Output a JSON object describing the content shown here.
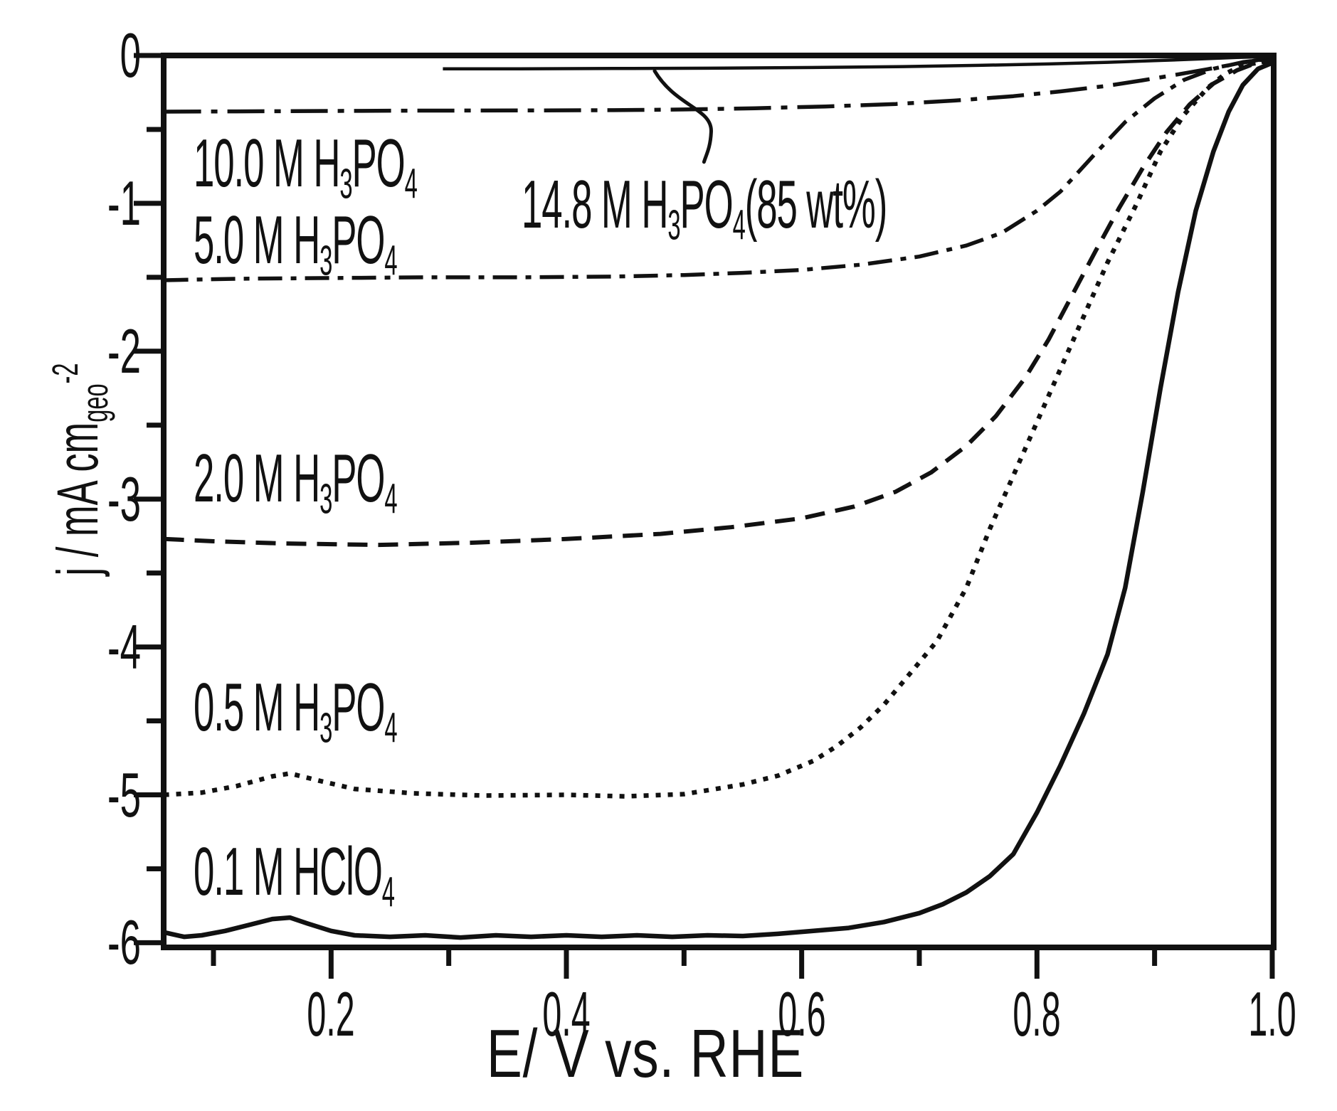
{
  "figure": {
    "background": "#ffffff",
    "ink": "#111111",
    "kind": "scanned scientific figure, black line art on white"
  },
  "chart_data": {
    "type": "line",
    "title": "",
    "description": "Oxygen-reduction polarization curves: current density j vs potential E for electrolytes of different concentration; each curve labeled inline",
    "x_axis": {
      "label": "E/ V vs. RHE",
      "label_segments": [
        {
          "t": "E/ V vs. RHE"
        }
      ],
      "min": 0.057,
      "max": 1.005,
      "major_ticks": [
        0.2,
        0.4,
        0.6,
        0.8,
        1.0
      ],
      "tick_labels": [
        "0.2",
        "0.4",
        "0.6",
        "0.8",
        "1.0"
      ],
      "minor_ticks": [
        0.1,
        0.3,
        0.5,
        0.7,
        0.9
      ],
      "grid": false
    },
    "y_axis": {
      "label": "j / mA cm_geo^-2",
      "label_segments": [
        {
          "t": "j / mA cm"
        },
        {
          "t": "geo",
          "sub": true
        },
        {
          "t": "-2",
          "sup": true
        }
      ],
      "min": -6.03,
      "max": 0,
      "major_ticks": [
        0,
        -1,
        -2,
        -3,
        -4,
        -5,
        -6
      ],
      "tick_labels": [
        "0",
        "-1",
        "-2",
        "-3",
        "-4",
        "-5",
        "-6"
      ],
      "minor_ticks": [
        -0.5,
        -1.5,
        -2.5,
        -3.5,
        -4.5,
        -5.5
      ],
      "grid": false
    },
    "legend_position": "none, curves labeled inline",
    "series": [
      {
        "name": "14.8 M H3PO4 (85 wt%)",
        "line_style": "solid-thin",
        "points": [
          [
            0.295,
            -0.09
          ],
          [
            0.36,
            -0.09
          ],
          [
            0.44,
            -0.088
          ],
          [
            0.52,
            -0.086
          ],
          [
            0.6,
            -0.082
          ],
          [
            0.68,
            -0.076
          ],
          [
            0.75,
            -0.067
          ],
          [
            0.81,
            -0.057
          ],
          [
            0.86,
            -0.046
          ],
          [
            0.9,
            -0.035
          ],
          [
            0.94,
            -0.023
          ],
          [
            0.97,
            -0.013
          ],
          [
            1.0,
            -0.007
          ]
        ]
      },
      {
        "name": "10.0 M H3PO4",
        "line_style": "dash-dot-long",
        "points": [
          [
            0.058,
            -0.38
          ],
          [
            0.12,
            -0.378
          ],
          [
            0.2,
            -0.375
          ],
          [
            0.28,
            -0.373
          ],
          [
            0.36,
            -0.372
          ],
          [
            0.44,
            -0.37
          ],
          [
            0.5,
            -0.365
          ],
          [
            0.56,
            -0.357
          ],
          [
            0.62,
            -0.345
          ],
          [
            0.68,
            -0.328
          ],
          [
            0.73,
            -0.305
          ],
          [
            0.78,
            -0.275
          ],
          [
            0.82,
            -0.243
          ],
          [
            0.86,
            -0.205
          ],
          [
            0.89,
            -0.168
          ],
          [
            0.92,
            -0.128
          ],
          [
            0.945,
            -0.093
          ],
          [
            0.965,
            -0.063
          ],
          [
            0.98,
            -0.042
          ],
          [
            0.99,
            -0.028
          ],
          [
            1.0,
            -0.018
          ]
        ]
      },
      {
        "name": "5.0 M H3PO4",
        "line_style": "dash-dot",
        "points": [
          [
            0.058,
            -1.52
          ],
          [
            0.12,
            -1.51
          ],
          [
            0.2,
            -1.505
          ],
          [
            0.28,
            -1.5
          ],
          [
            0.36,
            -1.5
          ],
          [
            0.44,
            -1.495
          ],
          [
            0.5,
            -1.485
          ],
          [
            0.55,
            -1.47
          ],
          [
            0.6,
            -1.45
          ],
          [
            0.65,
            -1.415
          ],
          [
            0.7,
            -1.36
          ],
          [
            0.74,
            -1.285
          ],
          [
            0.77,
            -1.2
          ],
          [
            0.8,
            -1.05
          ],
          [
            0.82,
            -0.92
          ],
          [
            0.85,
            -0.66
          ],
          [
            0.875,
            -0.45
          ],
          [
            0.9,
            -0.29
          ],
          [
            0.925,
            -0.165
          ],
          [
            0.95,
            -0.09
          ],
          [
            0.975,
            -0.045
          ],
          [
            1.0,
            -0.02
          ]
        ]
      },
      {
        "name": "2.0 M H3PO4",
        "line_style": "dashed",
        "points": [
          [
            0.058,
            -3.27
          ],
          [
            0.1,
            -3.285
          ],
          [
            0.16,
            -3.3
          ],
          [
            0.24,
            -3.31
          ],
          [
            0.32,
            -3.295
          ],
          [
            0.4,
            -3.27
          ],
          [
            0.48,
            -3.235
          ],
          [
            0.54,
            -3.19
          ],
          [
            0.6,
            -3.13
          ],
          [
            0.645,
            -3.05
          ],
          [
            0.68,
            -2.95
          ],
          [
            0.71,
            -2.82
          ],
          [
            0.74,
            -2.64
          ],
          [
            0.765,
            -2.44
          ],
          [
            0.79,
            -2.18
          ],
          [
            0.81,
            -1.92
          ],
          [
            0.83,
            -1.62
          ],
          [
            0.85,
            -1.32
          ],
          [
            0.87,
            -1.03
          ],
          [
            0.89,
            -0.76
          ],
          [
            0.91,
            -0.52
          ],
          [
            0.93,
            -0.33
          ],
          [
            0.95,
            -0.19
          ],
          [
            0.97,
            -0.1
          ],
          [
            0.985,
            -0.055
          ],
          [
            1.0,
            -0.03
          ]
        ]
      },
      {
        "name": "0.5 M H3PO4",
        "line_style": "dotted",
        "points": [
          [
            0.058,
            -5.0
          ],
          [
            0.09,
            -4.985
          ],
          [
            0.12,
            -4.94
          ],
          [
            0.15,
            -4.875
          ],
          [
            0.165,
            -4.855
          ],
          [
            0.19,
            -4.905
          ],
          [
            0.22,
            -4.96
          ],
          [
            0.27,
            -4.99
          ],
          [
            0.33,
            -5.005
          ],
          [
            0.4,
            -5.0
          ],
          [
            0.45,
            -5.01
          ],
          [
            0.5,
            -4.995
          ],
          [
            0.55,
            -4.93
          ],
          [
            0.58,
            -4.87
          ],
          [
            0.61,
            -4.77
          ],
          [
            0.63,
            -4.67
          ],
          [
            0.65,
            -4.545
          ],
          [
            0.67,
            -4.39
          ],
          [
            0.69,
            -4.2
          ],
          [
            0.715,
            -3.96
          ],
          [
            0.74,
            -3.6
          ],
          [
            0.76,
            -3.2
          ],
          [
            0.785,
            -2.75
          ],
          [
            0.81,
            -2.3
          ],
          [
            0.835,
            -1.85
          ],
          [
            0.86,
            -1.4
          ],
          [
            0.885,
            -1.0
          ],
          [
            0.905,
            -0.65
          ],
          [
            0.925,
            -0.4
          ],
          [
            0.945,
            -0.22
          ],
          [
            0.96,
            -0.125
          ],
          [
            0.975,
            -0.065
          ],
          [
            1.0,
            -0.035
          ]
        ]
      },
      {
        "name": "0.1 M HClO4",
        "line_style": "solid",
        "points": [
          [
            0.058,
            -5.93
          ],
          [
            0.075,
            -5.96
          ],
          [
            0.09,
            -5.95
          ],
          [
            0.11,
            -5.92
          ],
          [
            0.13,
            -5.88
          ],
          [
            0.15,
            -5.84
          ],
          [
            0.165,
            -5.83
          ],
          [
            0.18,
            -5.87
          ],
          [
            0.2,
            -5.92
          ],
          [
            0.22,
            -5.95
          ],
          [
            0.25,
            -5.96
          ],
          [
            0.28,
            -5.95
          ],
          [
            0.31,
            -5.965
          ],
          [
            0.34,
            -5.95
          ],
          [
            0.37,
            -5.96
          ],
          [
            0.4,
            -5.95
          ],
          [
            0.43,
            -5.96
          ],
          [
            0.46,
            -5.95
          ],
          [
            0.49,
            -5.96
          ],
          [
            0.52,
            -5.95
          ],
          [
            0.55,
            -5.955
          ],
          [
            0.58,
            -5.94
          ],
          [
            0.61,
            -5.92
          ],
          [
            0.64,
            -5.9
          ],
          [
            0.67,
            -5.86
          ],
          [
            0.7,
            -5.8
          ],
          [
            0.72,
            -5.74
          ],
          [
            0.74,
            -5.66
          ],
          [
            0.76,
            -5.55
          ],
          [
            0.78,
            -5.4
          ],
          [
            0.8,
            -5.12
          ],
          [
            0.82,
            -4.8
          ],
          [
            0.84,
            -4.45
          ],
          [
            0.86,
            -4.05
          ],
          [
            0.875,
            -3.6
          ],
          [
            0.89,
            -2.95
          ],
          [
            0.905,
            -2.25
          ],
          [
            0.92,
            -1.6
          ],
          [
            0.935,
            -1.05
          ],
          [
            0.95,
            -0.65
          ],
          [
            0.963,
            -0.38
          ],
          [
            0.975,
            -0.2
          ],
          [
            0.988,
            -0.09
          ],
          [
            1.0,
            -0.05
          ]
        ]
      }
    ],
    "labels": [
      {
        "id": "label-10.0M",
        "for_series": "10.0 M H3PO4",
        "anchor": {
          "x": 0.083,
          "y": -0.5
        },
        "segments": [
          {
            "t": "10.0 M H"
          },
          {
            "t": "3",
            "sub": true
          },
          {
            "t": "PO"
          },
          {
            "t": "4",
            "sub": true
          }
        ]
      },
      {
        "id": "label-5.0M",
        "for_series": "5.0 M H3PO4",
        "anchor": {
          "x": 0.083,
          "y": -1.02
        },
        "segments": [
          {
            "t": "5.0 M H"
          },
          {
            "t": "3",
            "sub": true
          },
          {
            "t": "PO"
          },
          {
            "t": "4",
            "sub": true
          }
        ]
      },
      {
        "id": "label-14.8M",
        "for_series": "14.8 M H3PO4 (85 wt%)",
        "anchor": {
          "x": 0.362,
          "y": -0.78
        },
        "segments": [
          {
            "t": "14.8 M H"
          },
          {
            "t": "3",
            "sub": true
          },
          {
            "t": "PO"
          },
          {
            "t": "4",
            "sub": true
          },
          {
            "t": "(85 wt%)"
          }
        ]
      },
      {
        "id": "label-2.0M",
        "for_series": "2.0 M H3PO4",
        "anchor": {
          "x": 0.083,
          "y": -2.63
        },
        "segments": [
          {
            "t": "2.0 M H"
          },
          {
            "t": "3",
            "sub": true
          },
          {
            "t": "PO"
          },
          {
            "t": "4",
            "sub": true
          }
        ]
      },
      {
        "id": "label-0.5M",
        "for_series": "0.5 M H3PO4",
        "anchor": {
          "x": 0.083,
          "y": -4.18
        },
        "segments": [
          {
            "t": "0.5 M H"
          },
          {
            "t": "3",
            "sub": true
          },
          {
            "t": "PO"
          },
          {
            "t": "4",
            "sub": true
          }
        ]
      },
      {
        "id": "label-0.1M",
        "for_series": "0.1 M HClO4",
        "anchor": {
          "x": 0.083,
          "y": -5.29
        },
        "segments": [
          {
            "t": "0.1 M HClO"
          },
          {
            "t": "4",
            "sub": true
          }
        ]
      }
    ],
    "callout": {
      "target_series": "14.8 M H3PO4 (85 wt%)",
      "from": {
        "x": 0.475,
        "y": -0.105
      },
      "to": {
        "x": 0.517,
        "y": -0.72
      }
    }
  }
}
